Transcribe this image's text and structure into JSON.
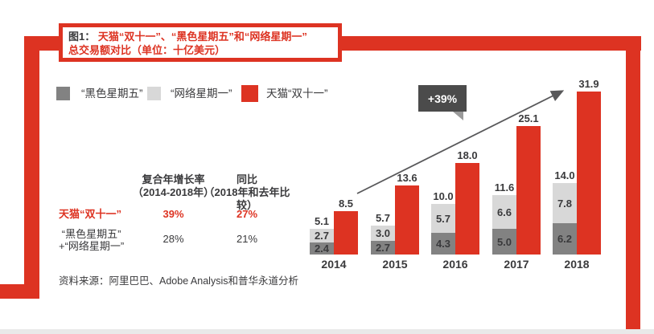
{
  "figure": {
    "number": "图1：",
    "title": "天猫“双十一”、“黑色星期五”和“网络星期一”",
    "subtitle": "总交易额对比（单位：十亿美元）"
  },
  "colors": {
    "red": "#dd3322",
    "dark_gray": "#828282",
    "light_gray": "#d8d8d8",
    "text": "#3a3a3c",
    "badge_bg": "#4b4b4b",
    "arrow": "#58585a",
    "bottom_strip": "#e9e9e9"
  },
  "legend": {
    "items": [
      {
        "label": "“黑色星期五”",
        "color": "#828282"
      },
      {
        "label": "“网络星期一”",
        "color": "#d8d8d8"
      },
      {
        "label": "天猫“双十一”",
        "color": "#dd3322"
      }
    ]
  },
  "stats_table": {
    "headers": [
      "复合年增长率\n（2014-2018年）",
      "同比\n（2018年和去年比较）"
    ],
    "rows": [
      {
        "label": "天猫“双十一”",
        "cagr": "39%",
        "yoy": "27%"
      },
      {
        "label": "“黑色星期五”\n+“网络星期一”",
        "cagr": "28%",
        "yoy": "21%"
      }
    ]
  },
  "annotation": {
    "growth_badge": "+39%"
  },
  "source": "资料来源：阿里巴巴、Adobe Analysis和普华永道分析",
  "chart_data": {
    "type": "bar",
    "subtype": "stacked-pair",
    "categories": [
      "2014",
      "2015",
      "2016",
      "2017",
      "2018"
    ],
    "series": [
      {
        "name": "“黑色星期五”",
        "color": "#828282",
        "values": [
          2.4,
          2.7,
          4.3,
          5.0,
          6.2
        ]
      },
      {
        "name": "“网络星期一”",
        "color": "#d8d8d8",
        "values": [
          2.7,
          3.0,
          5.7,
          6.6,
          7.8
        ]
      },
      {
        "name": "天猫“双十一”",
        "color": "#dd3322",
        "values": [
          8.5,
          13.6,
          18.0,
          25.1,
          31.9
        ]
      }
    ],
    "stack_total_labels": [
      5.1,
      5.7,
      10.0,
      11.6,
      14.0
    ],
    "title": "天猫“双十一”、“黑色星期五”和“网络星期一”总交易额对比",
    "unit": "十亿美元",
    "ylim": [
      0,
      34
    ],
    "grid": false,
    "legend_position": "top-left",
    "annotation": "+39%"
  }
}
